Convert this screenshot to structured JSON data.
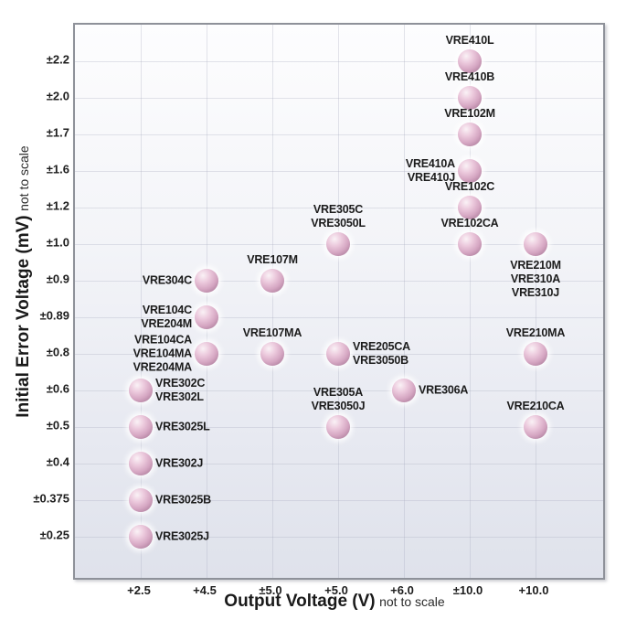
{
  "chart_data": {
    "type": "scatter",
    "title": "",
    "xlabel": "Output Voltage (V)",
    "xlabel_suffix": "not to scale",
    "ylabel": "Initial Error Voltage (mV)",
    "ylabel_suffix": "not to scale",
    "x_ticks": [
      "+2.5",
      "+4.5",
      "±5.0",
      "+5.0",
      "+6.0",
      "±10.0",
      "+10.0"
    ],
    "y_ticks": [
      "±2.2",
      "±2.0",
      "±1.7",
      "±1.6",
      "±1.2",
      "±1.0",
      "±0.9",
      "±0.89",
      "±0.8",
      "±0.6",
      "±0.5",
      "±0.4",
      "±0.375",
      "±0.25"
    ],
    "grid": true,
    "legend": false,
    "points": [
      {
        "labels": [
          "VRE410L"
        ],
        "x": "±10.0",
        "y": "±2.2",
        "label_pos": "above"
      },
      {
        "labels": [
          "VRE410B"
        ],
        "x": "±10.0",
        "y": "±2.0",
        "label_pos": "above"
      },
      {
        "labels": [
          "VRE102M"
        ],
        "x": "±10.0",
        "y": "±1.7",
        "label_pos": "above"
      },
      {
        "labels": [
          "VRE410A",
          "VRE410J"
        ],
        "x": "±10.0",
        "y": "±1.6",
        "label_pos": "left"
      },
      {
        "labels": [
          "VRE102C"
        ],
        "x": "±10.0",
        "y": "±1.2",
        "label_pos": "above"
      },
      {
        "labels": [
          "VRE305C",
          "VRE3050L"
        ],
        "x": "+5.0",
        "y": "±1.0",
        "label_pos": "above"
      },
      {
        "labels": [
          "VRE102CA"
        ],
        "x": "±10.0",
        "y": "±1.0",
        "label_pos": "above"
      },
      {
        "labels": [
          "VRE210M",
          "VRE310A",
          "VRE310J"
        ],
        "x": "+10.0",
        "y": "±1.0",
        "label_pos": "below"
      },
      {
        "labels": [
          "VRE304C"
        ],
        "x": "+4.5",
        "y": "±0.9",
        "label_pos": "left"
      },
      {
        "labels": [
          "VRE107M"
        ],
        "x": "±5.0",
        "y": "±0.9",
        "label_pos": "above"
      },
      {
        "labels": [
          "VRE104C",
          "VRE204M"
        ],
        "x": "+4.5",
        "y": "±0.89",
        "label_pos": "left"
      },
      {
        "labels": [
          "VRE104CA",
          "VRE104MA",
          "VRE204MA"
        ],
        "x": "+4.5",
        "y": "±0.8",
        "label_pos": "left"
      },
      {
        "labels": [
          "VRE107MA"
        ],
        "x": "±5.0",
        "y": "±0.8",
        "label_pos": "above"
      },
      {
        "labels": [
          "VRE205CA",
          "VRE3050B"
        ],
        "x": "+5.0",
        "y": "±0.8",
        "label_pos": "right"
      },
      {
        "labels": [
          "VRE210MA"
        ],
        "x": "+10.0",
        "y": "±0.8",
        "label_pos": "above"
      },
      {
        "labels": [
          "VRE302C",
          "VRE302L"
        ],
        "x": "+2.5",
        "y": "±0.6",
        "label_pos": "right"
      },
      {
        "labels": [
          "VRE306A"
        ],
        "x": "+6.0",
        "y": "±0.6",
        "label_pos": "right"
      },
      {
        "labels": [
          "VRE3025L"
        ],
        "x": "+2.5",
        "y": "±0.5",
        "label_pos": "right"
      },
      {
        "labels": [
          "VRE305A",
          "VRE3050J"
        ],
        "x": "+5.0",
        "y": "±0.5",
        "label_pos": "above"
      },
      {
        "labels": [
          "VRE210CA"
        ],
        "x": "+10.0",
        "y": "±0.5",
        "label_pos": "above"
      },
      {
        "labels": [
          "VRE302J"
        ],
        "x": "+2.5",
        "y": "±0.4",
        "label_pos": "right"
      },
      {
        "labels": [
          "VRE3025B"
        ],
        "x": "+2.5",
        "y": "±0.375",
        "label_pos": "right"
      },
      {
        "labels": [
          "VRE3025J"
        ],
        "x": "+2.5",
        "y": "±0.25",
        "label_pos": "right"
      }
    ],
    "colors": {
      "ball_highlight": "#faf2f6",
      "ball_light": "#eccadd",
      "ball_mid": "#d5a6c2",
      "ball_dark": "#aa7b99",
      "ball_edge": "#9e708c",
      "text": "#1c1c1c",
      "plot_bg_top": "#fdfdfe",
      "plot_bg_bottom": "#dfe2eb",
      "grid": "#a5aabe",
      "border": "#8e9199"
    }
  }
}
